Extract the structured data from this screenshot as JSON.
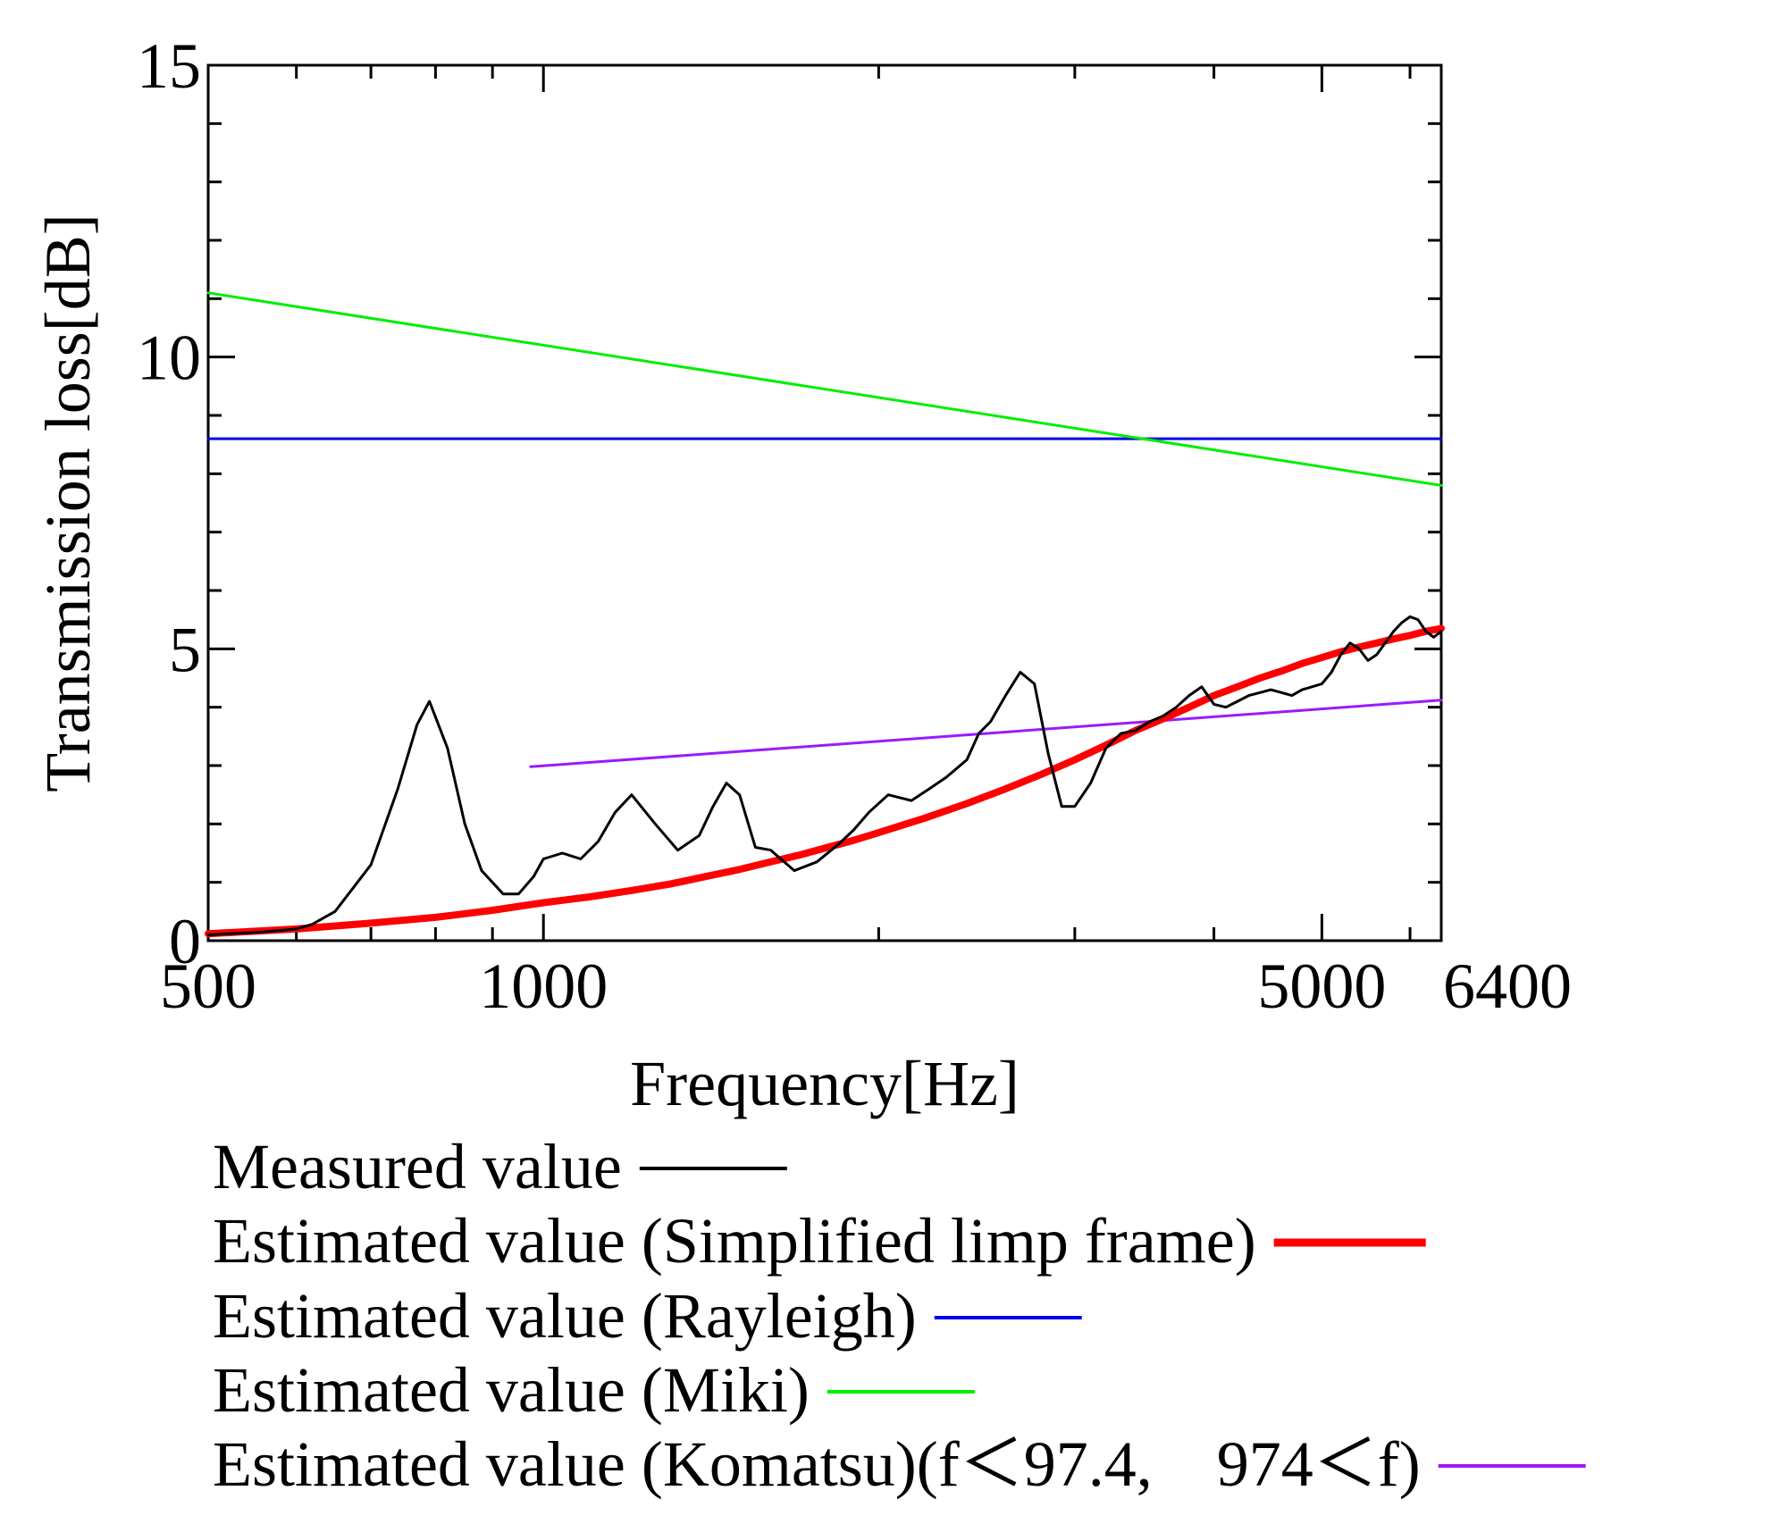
{
  "chart_data": {
    "type": "line",
    "title": "",
    "xlabel": "Frequency[Hz]",
    "ylabel": "Transmission loss[dB]",
    "x_scale": "log",
    "xlim": [
      500,
      6400
    ],
    "ylim": [
      0,
      15
    ],
    "x_ticklabels": [
      {
        "value": 500,
        "label": "500"
      },
      {
        "value": 1000,
        "label": "1000"
      },
      {
        "value": 5000,
        "label": "5000"
      },
      {
        "value": 6400,
        "label": "6400"
      }
    ],
    "y_ticklabels": [
      {
        "value": 0,
        "label": "0"
      },
      {
        "value": 5,
        "label": "5"
      },
      {
        "value": 10,
        "label": "10"
      },
      {
        "value": 15,
        "label": "15"
      }
    ],
    "series": [
      {
        "name": "Measured value",
        "color": "#000000",
        "x": [
          500,
          560,
          600,
          620,
          650,
          700,
          740,
          770,
          790,
          820,
          850,
          880,
          920,
          950,
          980,
          1000,
          1040,
          1080,
          1120,
          1160,
          1200,
          1260,
          1320,
          1380,
          1420,
          1460,
          1500,
          1550,
          1600,
          1680,
          1760,
          1840,
          1900,
          1960,
          2040,
          2140,
          2220,
          2300,
          2400,
          2460,
          2520,
          2600,
          2680,
          2760,
          2840,
          2920,
          3000,
          3100,
          3200,
          3300,
          3400,
          3500,
          3600,
          3700,
          3800,
          3900,
          4000,
          4100,
          4200,
          4300,
          4400,
          4500,
          4600,
          4700,
          4800,
          4900,
          5000,
          5100,
          5200,
          5300,
          5400,
          5500,
          5600,
          5700,
          5800,
          5900,
          6000,
          6100,
          6200,
          6300,
          6400
        ],
        "y": [
          0.1,
          0.15,
          0.2,
          0.28,
          0.5,
          1.3,
          2.6,
          3.7,
          4.1,
          3.3,
          2.0,
          1.2,
          0.8,
          0.8,
          1.1,
          1.4,
          1.5,
          1.4,
          1.7,
          2.2,
          2.5,
          2.0,
          1.55,
          1.8,
          2.3,
          2.7,
          2.5,
          1.6,
          1.55,
          1.2,
          1.35,
          1.65,
          1.9,
          2.2,
          2.5,
          2.4,
          2.6,
          2.8,
          3.1,
          3.55,
          3.75,
          4.2,
          4.6,
          4.4,
          3.2,
          2.3,
          2.3,
          2.7,
          3.3,
          3.55,
          3.6,
          3.75,
          3.85,
          4.0,
          4.2,
          4.35,
          4.05,
          4.0,
          4.1,
          4.2,
          4.25,
          4.3,
          4.25,
          4.2,
          4.3,
          4.35,
          4.4,
          4.6,
          4.9,
          5.1,
          5.0,
          4.8,
          4.9,
          5.1,
          5.3,
          5.45,
          5.55,
          5.5,
          5.3,
          5.2,
          5.3
        ]
      },
      {
        "name": "Estimated value (Simplified limp frame)",
        "color": "#ff0000",
        "x": [
          500,
          600,
          700,
          800,
          900,
          1000,
          1100,
          1200,
          1300,
          1400,
          1500,
          1600,
          1700,
          1800,
          1900,
          2000,
          2200,
          2400,
          2600,
          2800,
          3000,
          3200,
          3400,
          3600,
          3800,
          4000,
          4200,
          4400,
          4600,
          4800,
          5000,
          5200,
          5400,
          5600,
          5800,
          6000,
          6200,
          6400
        ],
        "y": [
          0.12,
          0.2,
          0.3,
          0.4,
          0.52,
          0.65,
          0.75,
          0.86,
          0.97,
          1.1,
          1.22,
          1.35,
          1.47,
          1.6,
          1.72,
          1.85,
          2.1,
          2.35,
          2.6,
          2.85,
          3.1,
          3.35,
          3.6,
          3.8,
          4.0,
          4.2,
          4.35,
          4.5,
          4.62,
          4.75,
          4.85,
          4.95,
          5.03,
          5.1,
          5.17,
          5.23,
          5.3,
          5.35
        ]
      },
      {
        "name": "Estimated value (Rayleigh)",
        "color": "#0000ee",
        "x": [
          500,
          6400
        ],
        "y": [
          8.6,
          8.6
        ]
      },
      {
        "name": "Estimated value (Miki)",
        "color": "#00ee00",
        "x": [
          500,
          6400
        ],
        "y": [
          11.1,
          7.8
        ]
      },
      {
        "name": "Estimated value (Komatsu)(f＜97.4,　974＜f)",
        "color": "#9a1aff",
        "x": [
          974,
          6400
        ],
        "y": [
          2.98,
          4.12
        ]
      }
    ],
    "legend": {
      "placement": "bottom",
      "entries": [
        "Measured value",
        "Estimated value (Simplified limp frame)",
        "Estimated value (Rayleigh)",
        "Estimated value (Miki)",
        "Estimated value (Komatsu)(f＜97.4,　974＜f)"
      ]
    }
  }
}
